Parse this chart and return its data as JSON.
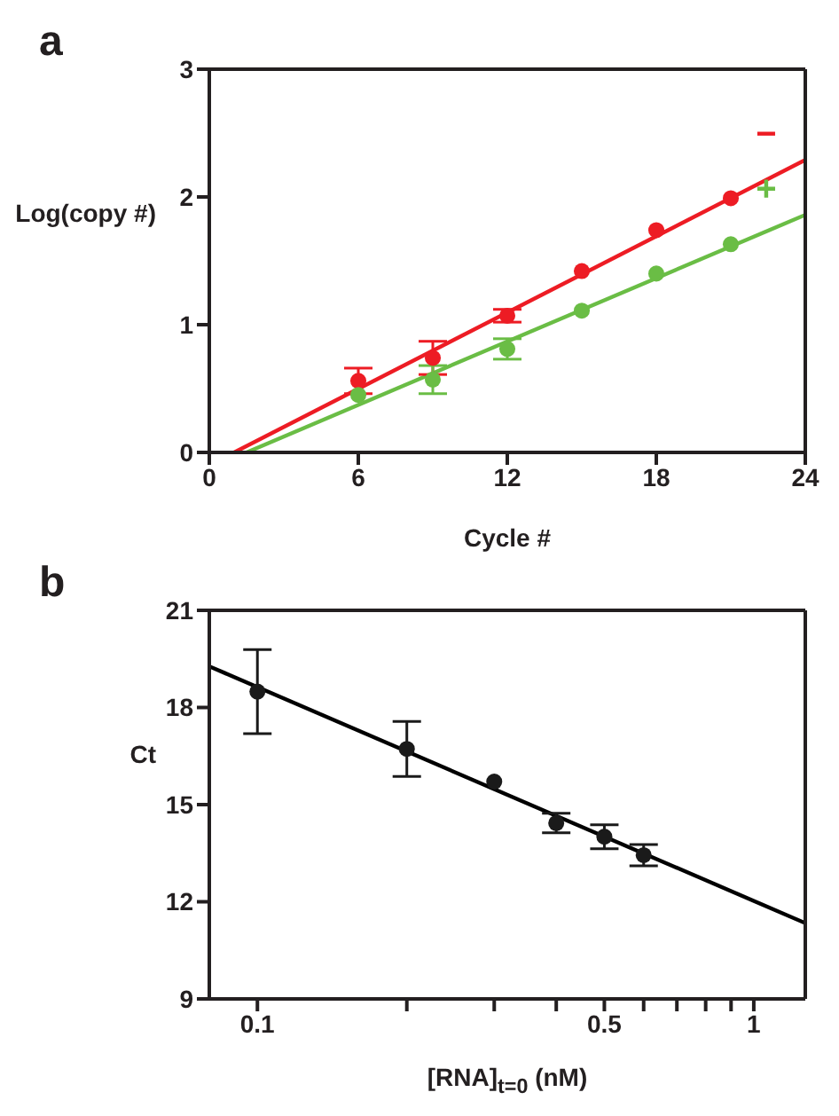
{
  "chart_data": [
    {
      "type": "scatter",
      "title": "a",
      "xlabel": "Cycle #",
      "ylabel": "Log(copy #)",
      "xlim": [
        0,
        24
      ],
      "ylim": [
        0,
        3
      ],
      "xticks": [
        0,
        6,
        12,
        18,
        24
      ],
      "yticks": [
        0,
        1,
        2,
        3
      ],
      "series": [
        {
          "marker": "circle",
          "color": "#ed1c24",
          "x": [
            6,
            9,
            12,
            15,
            18,
            21
          ],
          "values": [
            0.56,
            0.74,
            1.07,
            1.42,
            1.74,
            1.99
          ],
          "errors": [
            0.1,
            0.13,
            0.05,
            null,
            null,
            null
          ]
        },
        {
          "marker": "circle",
          "color": "#6abd45",
          "x": [
            6,
            9,
            12,
            15,
            18,
            21
          ],
          "values": [
            0.45,
            0.57,
            0.81,
            1.11,
            1.4,
            1.63
          ],
          "errors": [
            null,
            0.11,
            0.08,
            null,
            null,
            null
          ]
        },
        {
          "type": "line",
          "marker": "none",
          "name": "−",
          "color": "#ed1c24",
          "x": [
            1,
            24
          ],
          "values": [
            0,
            2.29
          ]
        },
        {
          "type": "line",
          "marker": "none",
          "name": "+",
          "color": "#6abd45",
          "x": [
            1.5,
            24
          ],
          "values": [
            0,
            1.86
          ]
        }
      ]
    },
    {
      "type": "scatter",
      "title": "b",
      "xlabel": "[RNA]$_{t=0}$ (nM)",
      "ylabel": "Ct",
      "log": "x",
      "xlim": [
        0.08,
        1.27
      ],
      "ylim": [
        9,
        21
      ],
      "xticks": [
        0.1,
        {
          "value": 0.2,
          "label": null
        },
        {
          "value": 0.3,
          "label": null
        },
        {
          "value": 0.4,
          "label": null
        },
        0.5,
        {
          "value": 0.6,
          "label": null
        },
        {
          "value": 0.7,
          "label": null
        },
        {
          "value": 0.8,
          "label": null
        },
        {
          "value": 0.9,
          "label": null
        },
        1
      ],
      "yticks": [
        9,
        12,
        15,
        18,
        21
      ],
      "series": [
        {
          "marker": "circle",
          "color": "#1a1a1a",
          "x": [
            0.1,
            0.2,
            0.3,
            0.4,
            0.5,
            0.6
          ],
          "values": [
            18.49,
            16.72,
            15.71,
            14.43,
            14.01,
            13.44
          ],
          "errors": [
            1.3,
            0.85,
            null,
            0.3,
            0.37,
            0.33
          ]
        },
        {
          "type": "line",
          "marker": "none",
          "color": "#000000",
          "x": [
            0.08,
            1.27
          ],
          "values": [
            19.27,
            11.34
          ]
        }
      ]
    }
  ]
}
